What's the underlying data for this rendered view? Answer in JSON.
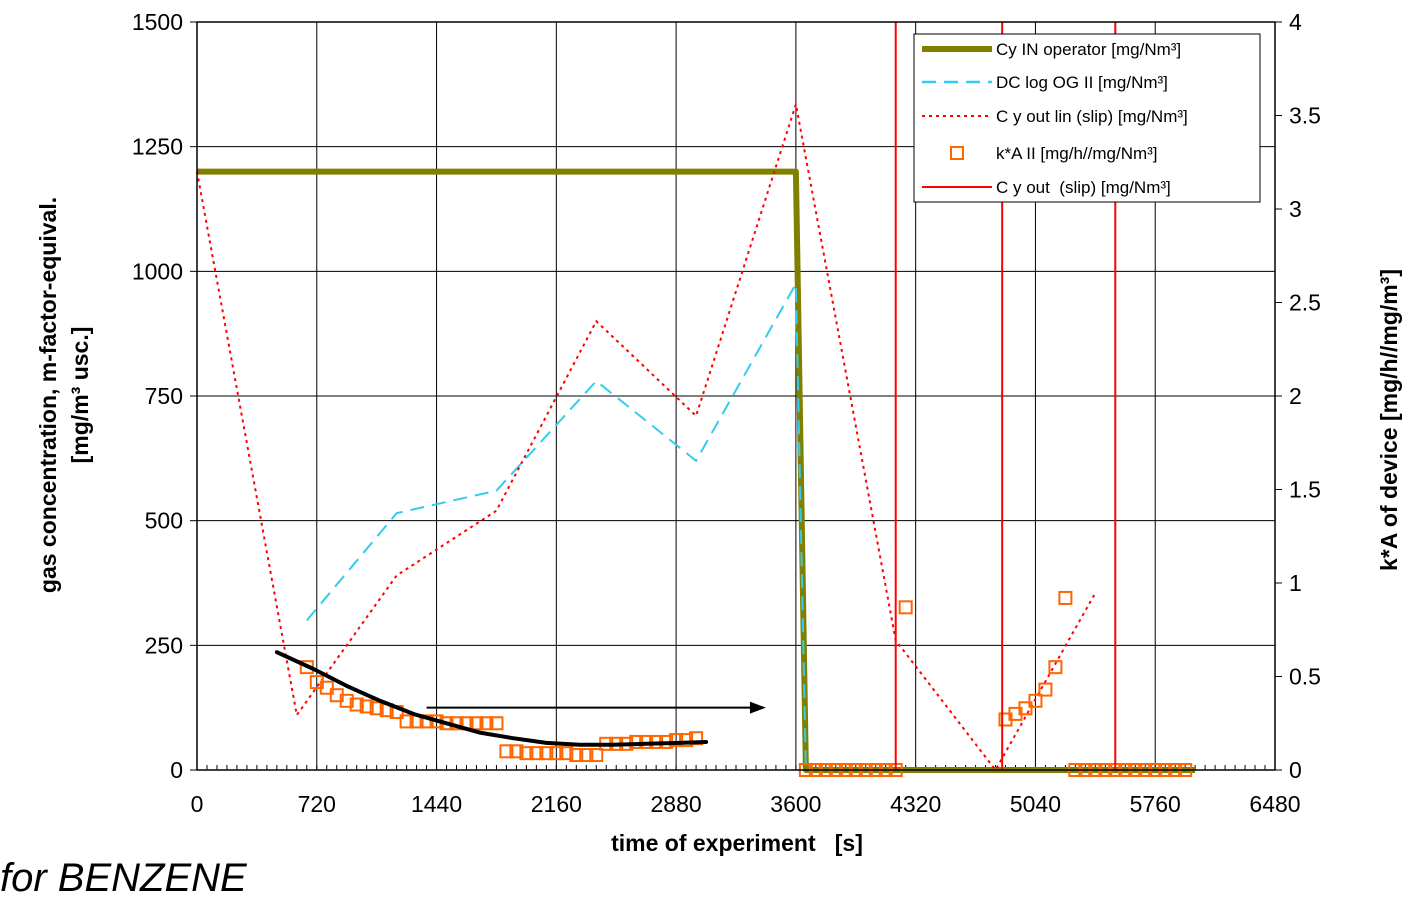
{
  "caption": "for BENZENE",
  "chart_data": {
    "type": "line",
    "xlabel": "time of experiment   [s]",
    "ylabel_left_line1": "gas concentration, m-factor-equival.",
    "ylabel_left_line2": "[mg/m³ usc.]",
    "ylabel_right": "k*A of device [mg/h//mg/m³]",
    "xlim": [
      0,
      6480
    ],
    "ylim_left": [
      0,
      1500
    ],
    "ylim_right": [
      0,
      4
    ],
    "x_ticks": [
      "0",
      "720",
      "1440",
      "2160",
      "2880",
      "3600",
      "4320",
      "5040",
      "5760",
      "6480"
    ],
    "x_tick_values": [
      0,
      720,
      1440,
      2160,
      2880,
      3600,
      4320,
      5040,
      5760,
      6480
    ],
    "y_left_ticks": [
      "0",
      "250",
      "500",
      "750",
      "1000",
      "1250",
      "1500"
    ],
    "y_left_tick_values": [
      0,
      250,
      500,
      750,
      1000,
      1250,
      1500
    ],
    "y_right_ticks": [
      "0",
      "0.5",
      "1",
      "1.5",
      "2",
      "2.5",
      "3",
      "3.5",
      "4"
    ],
    "y_right_tick_values": [
      0,
      0.5,
      1,
      1.5,
      2,
      2.5,
      3,
      3.5,
      4
    ],
    "grid": true,
    "legend_position": "top-right",
    "series": [
      {
        "name": "Cy IN operator [mg/Nm³]",
        "axis": "left",
        "style": "thick-solid",
        "color": "#808000",
        "x": [
          0,
          3600,
          3660,
          3660,
          6000
        ],
        "y": [
          1200,
          1200,
          0,
          0,
          0
        ]
      },
      {
        "name": "DC log OG II [mg/Nm³]",
        "axis": "left",
        "style": "dashed",
        "color": "#33CCEE",
        "x": [
          660,
          1200,
          1800,
          2400,
          3000,
          3600,
          3660
        ],
        "y": [
          300,
          515,
          560,
          780,
          620,
          975,
          0
        ]
      },
      {
        "name": "C y out lin (slip) [mg/Nm³]",
        "axis": "left",
        "style": "dotted",
        "color": "#FF0000",
        "x": [
          0,
          600,
          1200,
          1800,
          2400,
          3000,
          3600,
          4200,
          4800,
          5400
        ],
        "y": [
          1200,
          110,
          390,
          520,
          900,
          710,
          1335,
          260,
          0,
          355
        ]
      },
      {
        "name": "k*A II [mg/h//mg/Nm³]",
        "axis": "right",
        "style": "hollow-square",
        "color": "#FF6600",
        "x": [
          660,
          720,
          780,
          840,
          900,
          960,
          1020,
          1080,
          1140,
          1200,
          1260,
          1320,
          1380,
          1440,
          1500,
          1560,
          1620,
          1680,
          1740,
          1800,
          1860,
          1920,
          1980,
          2040,
          2100,
          2160,
          2220,
          2280,
          2340,
          2400,
          2460,
          2520,
          2580,
          2640,
          2700,
          2760,
          2820,
          2880,
          2940,
          3000,
          3660,
          3720,
          3780,
          3840,
          3900,
          3960,
          4020,
          4080,
          4140,
          4200,
          4260,
          4860,
          4920,
          4980,
          5040,
          5100,
          5160,
          5220,
          5280,
          5340,
          5400,
          5460,
          5520,
          5580,
          5640,
          5700,
          5760,
          5820,
          5880,
          5940
        ],
        "y": [
          0.55,
          0.47,
          0.44,
          0.4,
          0.37,
          0.35,
          0.34,
          0.33,
          0.32,
          0.31,
          0.26,
          0.26,
          0.26,
          0.26,
          0.25,
          0.25,
          0.25,
          0.25,
          0.25,
          0.25,
          0.1,
          0.1,
          0.09,
          0.09,
          0.09,
          0.09,
          0.09,
          0.08,
          0.08,
          0.08,
          0.14,
          0.14,
          0.14,
          0.15,
          0.15,
          0.15,
          0.15,
          0.16,
          0.16,
          0.17,
          0,
          0,
          0,
          0,
          0,
          0,
          0,
          0,
          0,
          0,
          0.87,
          0.27,
          0.3,
          0.33,
          0.37,
          0.43,
          0.55,
          0.92,
          0,
          0,
          0,
          0,
          0,
          0,
          0,
          0,
          0,
          0,
          0,
          0
        ]
      },
      {
        "name": "C y out  (slip) [mg/Nm³]",
        "axis": "left",
        "style": "solid-vertical-lines",
        "color": "#FF0000",
        "x": [
          4200,
          4840,
          5520
        ],
        "y": [
          1500,
          1500,
          1500
        ]
      }
    ],
    "trend_curve": {
      "color": "#000000",
      "axis": "right",
      "x": [
        480,
        700,
        900,
        1100,
        1300,
        1500,
        1700,
        1900,
        2100,
        2300,
        2500,
        2700,
        2900,
        3060
      ],
      "y": [
        0.63,
        0.54,
        0.45,
        0.37,
        0.3,
        0.25,
        0.2,
        0.17,
        0.145,
        0.135,
        0.135,
        0.14,
        0.145,
        0.15
      ]
    },
    "arrow": {
      "color": "#000000",
      "axis": "left",
      "from": [
        1380,
        125
      ],
      "to": [
        3420,
        125
      ]
    }
  }
}
